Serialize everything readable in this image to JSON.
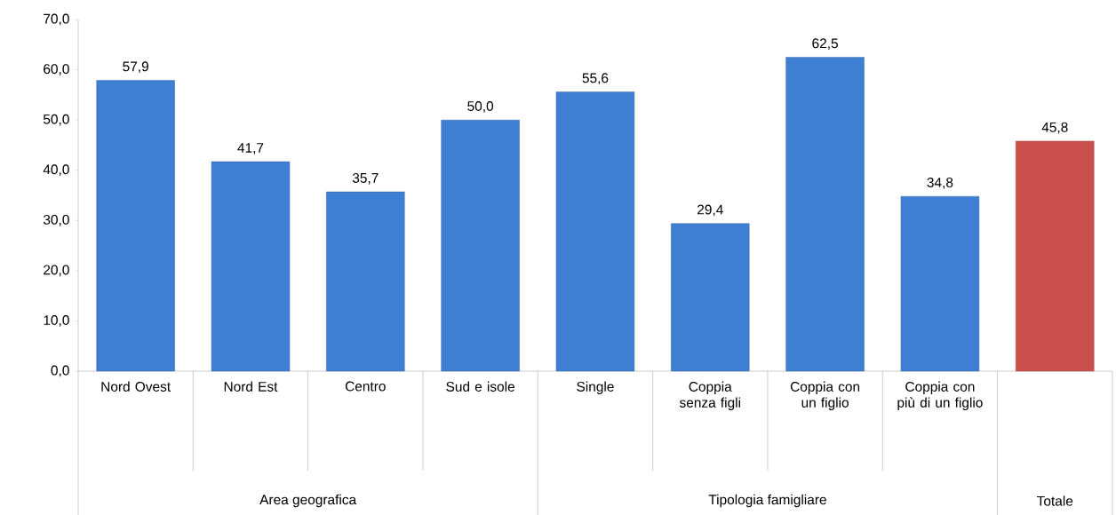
{
  "chart_data": {
    "type": "bar",
    "categories": [
      "Nord Ovest",
      "Nord Est",
      "Centro",
      "Sud e isole",
      "Single",
      "Coppia senza figli",
      "Coppia con un figlio",
      "Coppia con più di un figlio",
      null
    ],
    "values": [
      57.9,
      41.7,
      35.7,
      50.0,
      55.6,
      29.4,
      62.5,
      34.8,
      45.8
    ],
    "value_labels": [
      "57,9",
      "41,7",
      "35,7",
      "50,0",
      "55,6",
      "29,4",
      "62,5",
      "34,8",
      "45,8"
    ],
    "colors": [
      "#3f7fd3",
      "#3f7fd3",
      "#3f7fd3",
      "#3f7fd3",
      "#3f7fd3",
      "#3f7fd3",
      "#3f7fd3",
      "#3f7fd3",
      "#c9504d"
    ],
    "ylim": [
      0,
      70
    ],
    "yticks": [
      {
        "value": 0,
        "label": "0,0"
      },
      {
        "value": 10,
        "label": "10,0"
      },
      {
        "value": 20,
        "label": "20,0"
      },
      {
        "value": 30,
        "label": "30,0"
      },
      {
        "value": 40,
        "label": "40,0"
      },
      {
        "value": 50,
        "label": "50,0"
      },
      {
        "value": 60,
        "label": "60,0"
      },
      {
        "value": 70,
        "label": "70,0"
      }
    ],
    "annotations": [
      "Area geografica",
      "Tipologia famigliare",
      "Totale"
    ],
    "grid": false
  }
}
